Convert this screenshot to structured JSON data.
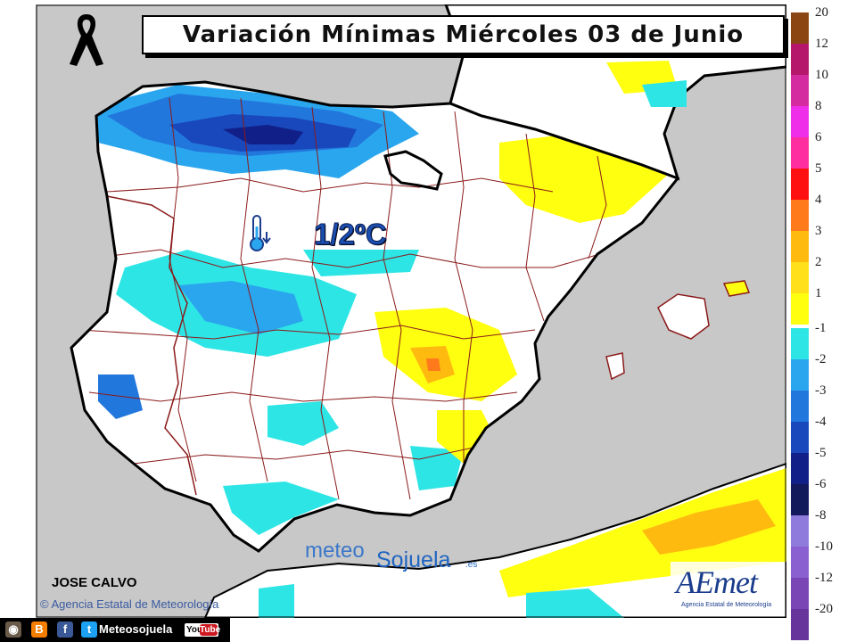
{
  "title": "Variación Mínimas Miércoles 03 de Junio",
  "map_label": "1/2ºC",
  "author": "JOSE CALVO",
  "agency_credit": "© Agencia Estatal de Meteorología",
  "watermark": {
    "part1": "meteo",
    "part2": "Sojuela",
    "part3": ".es"
  },
  "aemet_logo": {
    "word": "AEmet",
    "sub": "Agencia Estatal de Meteorología"
  },
  "social_bar": {
    "label": "Meteosojuela",
    "icons": [
      "instagram-icon",
      "blogger-icon",
      "facebook-icon",
      "twitter-icon",
      "youtube-icon"
    ],
    "youtube_text": {
      "you": "You",
      "tube": "Tube"
    }
  },
  "legend": {
    "warm": [
      {
        "label": "20",
        "color": "#8b4513"
      },
      {
        "label": "12",
        "color": "#b5186b"
      },
      {
        "label": "10",
        "color": "#d42ca0"
      },
      {
        "label": "8",
        "color": "#ee2ee8"
      },
      {
        "label": "6",
        "color": "#ff2ea0"
      },
      {
        "label": "5",
        "color": "#ff1010"
      },
      {
        "label": "4",
        "color": "#ff7a1a"
      },
      {
        "label": "3",
        "color": "#ffba10"
      },
      {
        "label": "2",
        "color": "#ffe01a"
      },
      {
        "label": "1",
        "color": "#ffff10"
      }
    ],
    "cold": [
      {
        "label": "-1",
        "color": "#2ee5e5"
      },
      {
        "label": "-2",
        "color": "#2aa6ee"
      },
      {
        "label": "-3",
        "color": "#2277dd"
      },
      {
        "label": "-4",
        "color": "#1848bb"
      },
      {
        "label": "-5",
        "color": "#111f88"
      },
      {
        "label": "-6",
        "color": "#121a5c"
      },
      {
        "label": "-8",
        "color": "#8e7bdc"
      },
      {
        "label": "-10",
        "color": "#8a5fcf"
      },
      {
        "label": "-12",
        "color": "#7a45b5"
      },
      {
        "label": "-20",
        "color": "#66349a"
      }
    ]
  },
  "colors": {
    "sea": "#c8c8c8",
    "land": "#ffffff",
    "coast": "#000000",
    "borders": "#8b1a1a",
    "accent_cold": "#1a4fb0"
  }
}
